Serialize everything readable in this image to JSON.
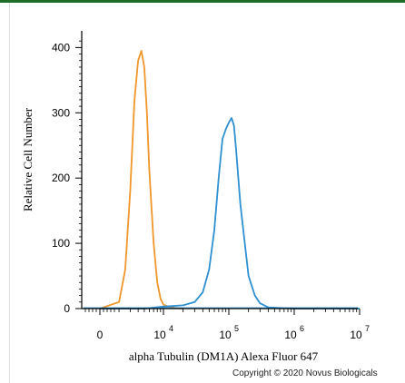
{
  "chart_data": {
    "type": "line",
    "title": "",
    "xlabel": "alpha Tubulin (DM1A) Alexa Fluor 647",
    "ylabel": "Relative Cell Number",
    "xscale": "biexponential",
    "ylim": [
      0,
      420
    ],
    "y_ticks": [
      0,
      100,
      200,
      300,
      400
    ],
    "x_ticks": [
      {
        "value": 0,
        "label": "0"
      },
      {
        "value": 10000,
        "base": "10",
        "exp": "4"
      },
      {
        "value": 100000,
        "base": "10",
        "exp": "5"
      },
      {
        "value": 1000000,
        "base": "10",
        "exp": "6"
      },
      {
        "value": 10000000,
        "base": "10",
        "exp": "7"
      }
    ],
    "series": [
      {
        "color": "#f0962a",
        "x": [
          1000,
          2000,
          2500,
          3000,
          3500,
          4000,
          4500,
          5000,
          5500,
          6000,
          7000,
          8000,
          9000,
          10000,
          12000,
          15000,
          20000
        ],
        "y": [
          0,
          10,
          60,
          180,
          320,
          380,
          395,
          370,
          300,
          210,
          100,
          40,
          15,
          6,
          3,
          1,
          0
        ]
      },
      {
        "color": "#2e8fd1",
        "x": [
          1000,
          5000,
          10000,
          20000,
          30000,
          40000,
          50000,
          60000,
          70000,
          80000,
          90000,
          100000,
          110000,
          120000,
          130000,
          150000,
          180000,
          200000,
          250000,
          300000,
          400000,
          1000000,
          10000000
        ],
        "y": [
          0,
          0,
          3,
          5,
          10,
          25,
          60,
          120,
          200,
          260,
          275,
          285,
          292,
          280,
          240,
          160,
          90,
          50,
          20,
          8,
          2,
          0,
          0
        ]
      }
    ]
  },
  "copyright": "Copyright © 2020 Novus Biologicals",
  "colors": {
    "top_strip": "#1d6e2a",
    "axis": "#000000"
  }
}
